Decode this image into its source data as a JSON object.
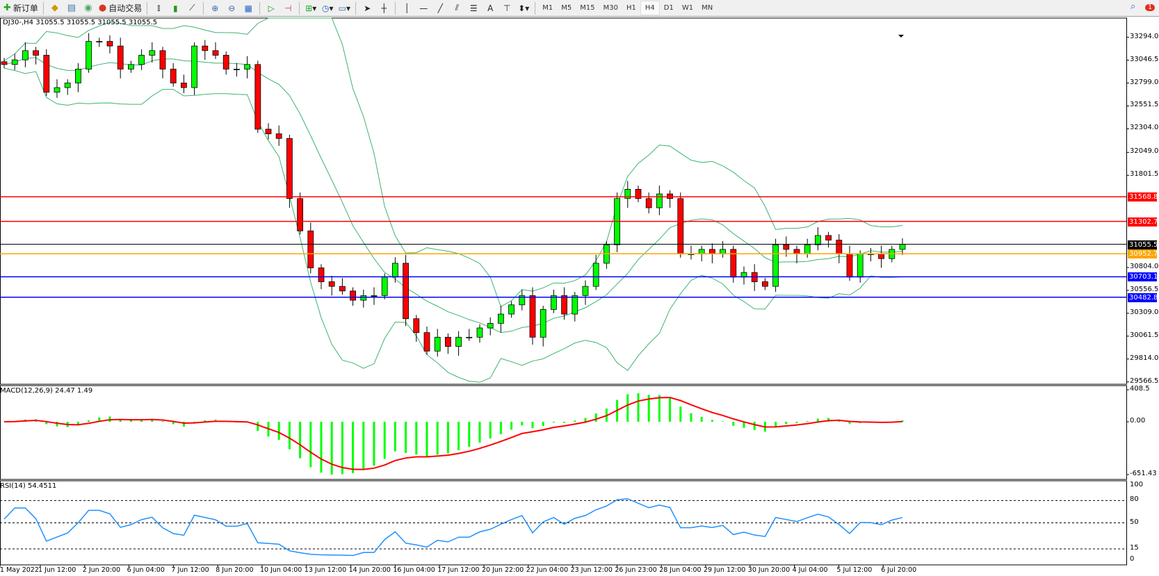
{
  "toolbar": {
    "new_order": "新订单",
    "auto_trading": "自动交易",
    "timeframes": [
      "M1",
      "M5",
      "M15",
      "M30",
      "H1",
      "H4",
      "D1",
      "W1",
      "MN"
    ],
    "active_timeframe": "H4",
    "notification_count": "1"
  },
  "chart": {
    "header": "DJ30-,H4  31055.5 31055.5 31055.5 31055.5",
    "price_axis": [
      "33294.0",
      "33046.5",
      "32799.0",
      "32551.5",
      "32304.0",
      "32049.0",
      "31801.5",
      "30804.0",
      "30556.5",
      "30309.0",
      "30061.5",
      "29814.0",
      "29566.5"
    ],
    "price_axis_values": [
      33294.0,
      33046.5,
      32799.0,
      32551.5,
      32304.0,
      32049.0,
      31801.5,
      30804.0,
      30556.5,
      30309.0,
      30061.5,
      29814.0,
      29566.5
    ],
    "levels": [
      {
        "label": "31568.8",
        "value": 31568.8,
        "color": "#ff0000"
      },
      {
        "label": "31302.7",
        "value": 31302.7,
        "color": "#ff0000"
      },
      {
        "label": "31055.5",
        "value": 31055.5,
        "color": "#000000"
      },
      {
        "label": "30952.7",
        "value": 30952.7,
        "color": "#ffa500"
      },
      {
        "label": "30703.1",
        "value": 30703.1,
        "color": "#0000ff"
      },
      {
        "label": "30482.8",
        "value": 30482.8,
        "color": "#0000ff"
      }
    ],
    "colors": {
      "bull": "#00ff00",
      "bear": "#ff0000",
      "bands": "#3cb371",
      "macd_hist": "#00ff00",
      "macd_signal": "#ff0000",
      "rsi": "#1e90ff"
    }
  },
  "macd": {
    "label": "MACD(12,26,9) 24.47 1.49",
    "axis": [
      "408.5",
      "0.00",
      "-651.43"
    ]
  },
  "rsi": {
    "label": "RSI(14) 54.4511",
    "axis": [
      "100",
      "80",
      "50",
      "15",
      "0"
    ]
  },
  "time_axis": [
    "1 May 2022",
    "1 Jun 12:00",
    "2 Jun 20:00",
    "6 Jun 04:00",
    "7 Jun 12:00",
    "8 Jun 20:00",
    "10 Jun 04:00",
    "13 Jun 12:00",
    "14 Jun 20:00",
    "16 Jun 04:00",
    "17 Jun 12:00",
    "20 Jun 22:00",
    "22 Jun 04:00",
    "23 Jun 12:00",
    "26 Jun 23:00",
    "28 Jun 04:00",
    "29 Jun 12:00",
    "30 Jun 20:00",
    "4 Jul 04:00",
    "5 Jul 12:00",
    "6 Jul 20:00"
  ],
  "chart_data": {
    "type": "candlestick",
    "symbol": "DJ30-",
    "timeframe": "H4",
    "closes": [
      33000,
      33050,
      33150,
      33100,
      32700,
      32750,
      32800,
      32950,
      33250,
      33250,
      33200,
      32950,
      33000,
      33100,
      33150,
      32950,
      32800,
      32750,
      33200,
      33150,
      33100,
      32950,
      32950,
      33000,
      32300,
      32250,
      32200,
      31550,
      31200,
      30800,
      30650,
      30600,
      30550,
      30450,
      30500,
      30500,
      30700,
      30850,
      30250,
      30100,
      29900,
      30050,
      29950,
      30050,
      30050,
      30150,
      30200,
      30300,
      30400,
      30500,
      30050,
      30350,
      30500,
      30300,
      30500,
      30600,
      30850,
      31050,
      31550,
      31650,
      31550,
      31450,
      31600,
      31550,
      30950,
      30950,
      31000,
      30950,
      31000,
      30700,
      30750,
      30650,
      30600,
      31050,
      31000,
      30950,
      31050,
      31150,
      31100,
      30950,
      30700,
      30950,
      30950,
      30900,
      31000,
      31055.5
    ],
    "ylim": [
      29566.5,
      33294.0
    ]
  }
}
